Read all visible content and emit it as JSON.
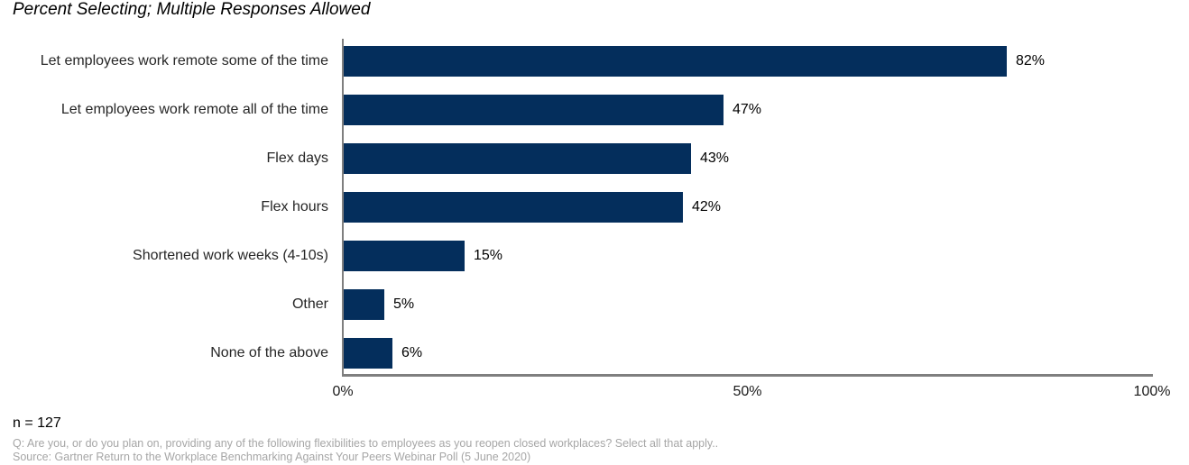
{
  "title": "Percent Selecting; Multiple Responses Allowed",
  "chart_data": {
    "type": "bar",
    "orientation": "horizontal",
    "title": "Percent Selecting; Multiple Responses Allowed",
    "categories": [
      "Let employees work remote some of the time",
      "Let employees work remote all of the time",
      "Flex days",
      "Flex hours",
      "Shortened work weeks (4-10s)",
      "Other",
      "None of the above"
    ],
    "values": [
      82,
      47,
      43,
      42,
      15,
      5,
      6
    ],
    "value_labels": [
      "82%",
      "47%",
      "43%",
      "42%",
      "15%",
      "5%",
      "6%"
    ],
    "xlim": [
      0,
      100
    ],
    "x_ticks": [
      {
        "label": "0%",
        "value": 0
      },
      {
        "label": "50%",
        "value": 50
      },
      {
        "label": "100%",
        "value": 100
      }
    ],
    "grid": false,
    "legend": "none",
    "colors": {
      "bar": "#042e5c",
      "axis": "#7f7f7f",
      "category_label": "#262626",
      "value_label": "#000000",
      "footnote_gray": "#a6a6a6"
    }
  },
  "footer": {
    "sample_size": "n = 127",
    "question_note": "Q: Are you, or do you plan on, providing any of the following flexibilities to employees as you reopen closed workplaces? Select all that apply..",
    "source_note": "Source: Gartner Return to the Workplace Benchmarking Against Your Peers Webinar Poll (5 June 2020)"
  }
}
